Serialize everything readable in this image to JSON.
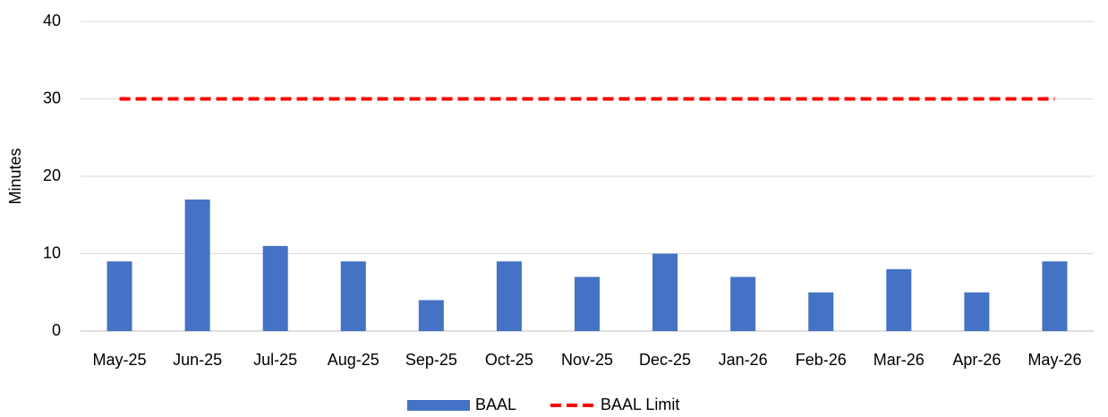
{
  "chart_data": {
    "type": "bar",
    "y_label": "Minutes",
    "categories": [
      "May-25",
      "Jun-25",
      "Jul-25",
      "Aug-25",
      "Sep-25",
      "Oct-25",
      "Nov-25",
      "Dec-25",
      "Jan-26",
      "Feb-26",
      "Mar-26",
      "Apr-26",
      "May-26"
    ],
    "series": [
      {
        "name": "BAAL",
        "type": "bar",
        "color": "#4472c4",
        "values": [
          9,
          17,
          11,
          9,
          4,
          9,
          7,
          10,
          7,
          5,
          8,
          5,
          9
        ]
      },
      {
        "name": "BAAL Limit",
        "type": "line",
        "line_style": "dashed",
        "color": "#ff0000",
        "values": [
          30,
          30,
          30,
          30,
          30,
          30,
          30,
          30,
          30,
          30,
          30,
          30,
          30
        ]
      }
    ],
    "ylim": [
      0,
      40
    ],
    "yticks": [
      0,
      10,
      20,
      30,
      40
    ],
    "grid": true,
    "legend": "bottom"
  }
}
